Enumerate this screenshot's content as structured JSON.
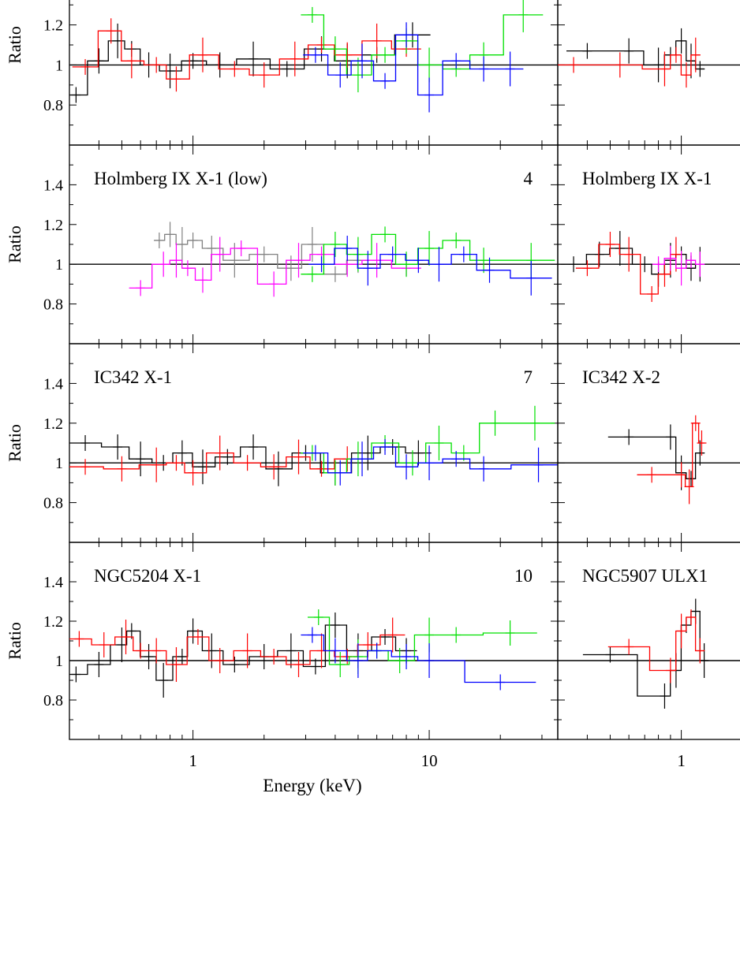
{
  "figure": {
    "ylabel": "Ratio",
    "xlabel": "Energy (keV)"
  },
  "colors": {
    "black": "#000000",
    "red": "#ff0000",
    "green": "#00e000",
    "blue": "#0000ff",
    "gray": "#808080",
    "magenta": "#ff00ff"
  },
  "chart_data": [
    {
      "type": "scatter",
      "panel_row": 1,
      "panel_col": 1,
      "title": "",
      "number": "",
      "xlabel": "",
      "ylabel": "Ratio",
      "xscale": "log",
      "xlim": [
        0.3,
        35
      ],
      "ylim": [
        0.6,
        1.6
      ],
      "yticks": [
        "0.8",
        "1",
        "1.2"
      ],
      "xticks": [],
      "reference_line": 1,
      "series": [
        {
          "color": "black",
          "x": [
            0.32,
            0.4,
            0.48,
            0.55,
            0.65,
            0.8,
            1.0,
            1.3,
            1.8,
            2.5,
            3.5,
            4.5,
            6,
            8.5
          ],
          "y": [
            0.85,
            1.02,
            1.12,
            1.08,
            1.0,
            0.97,
            1.02,
            1.0,
            1.03,
            0.98,
            1.08,
            1.02,
            1.05,
            1.15
          ]
        },
        {
          "color": "red",
          "x": [
            0.35,
            0.45,
            0.55,
            0.7,
            0.85,
            1.1,
            1.5,
            2.0,
            2.7,
            3.5,
            4.5,
            6,
            8
          ],
          "y": [
            0.99,
            1.17,
            1.02,
            1.0,
            0.93,
            1.05,
            0.98,
            0.95,
            1.03,
            1.1,
            1.05,
            1.12,
            1.08
          ]
        },
        {
          "color": "green",
          "x": [
            3.2,
            4,
            5,
            6.5,
            8,
            10,
            13,
            17,
            25
          ],
          "y": [
            1.25,
            1.08,
            0.95,
            1.05,
            1.12,
            1.0,
            0.98,
            1.05,
            1.25
          ]
        },
        {
          "color": "blue",
          "x": [
            3.3,
            4.2,
            5.2,
            6.5,
            8,
            10,
            13,
            17,
            22
          ],
          "y": [
            1.05,
            0.95,
            1.02,
            0.92,
            1.15,
            0.85,
            1.02,
            0.98,
            0.98
          ]
        }
      ]
    },
    {
      "type": "scatter",
      "panel_row": 1,
      "panel_col": 2,
      "title": "",
      "number": "",
      "xlabel": "",
      "ylabel": "",
      "xscale": "log",
      "xlim": [
        0.3,
        35
      ],
      "ylim": [
        0.6,
        1.6
      ],
      "yticks": [],
      "xticks": [],
      "reference_line": 1,
      "series": [
        {
          "color": "black",
          "x": [
            0.4,
            0.6,
            0.8,
            0.9,
            1.0,
            1.1,
            1.2
          ],
          "y": [
            1.07,
            1.07,
            1.0,
            1.05,
            1.12,
            1.02,
            0.98
          ]
        },
        {
          "color": "red",
          "x": [
            0.35,
            0.55,
            0.85,
            0.95,
            1.05,
            1.15
          ],
          "y": [
            1.0,
            1.0,
            0.98,
            1.05,
            0.95,
            1.05
          ]
        }
      ]
    },
    {
      "type": "scatter",
      "panel_row": 2,
      "panel_col": 1,
      "title": "Holmberg IX X-1 (low)",
      "number": "4",
      "xlabel": "",
      "ylabel": "Ratio",
      "xscale": "log",
      "xlim": [
        0.3,
        35
      ],
      "ylim": [
        0.6,
        1.6
      ],
      "yticks": [
        "0.8",
        "1",
        "1.2",
        "1.4"
      ],
      "xticks": [],
      "reference_line": 1,
      "series": [
        {
          "color": "gray",
          "x": [
            0.72,
            0.8,
            0.9,
            1.0,
            1.2,
            1.5,
            2,
            2.6,
            3.2,
            4,
            5
          ],
          "y": [
            1.12,
            1.15,
            1.1,
            1.12,
            1.08,
            1.02,
            1.05,
            0.98,
            1.1,
            0.95,
            1.02
          ]
        },
        {
          "color": "magenta",
          "x": [
            0.6,
            0.75,
            0.85,
            0.95,
            1.1,
            1.3,
            1.6,
            2.2,
            2.8,
            3.5,
            4.5,
            6,
            8
          ],
          "y": [
            0.88,
            1.0,
            1.02,
            0.98,
            0.92,
            1.05,
            1.08,
            0.9,
            1.02,
            1.05,
            1.0,
            1.02,
            0.98
          ]
        },
        {
          "color": "green",
          "x": [
            3.2,
            4,
            5,
            6.5,
            8,
            10,
            13,
            17,
            27
          ],
          "y": [
            0.95,
            1.1,
            1.05,
            1.15,
            1.0,
            1.08,
            1.12,
            1.02,
            1.02
          ]
        },
        {
          "color": "blue",
          "x": [
            3.5,
            4.5,
            5.5,
            7,
            9,
            11,
            14,
            18,
            27
          ],
          "y": [
            1.0,
            1.08,
            0.98,
            1.05,
            1.02,
            1.0,
            1.05,
            0.97,
            0.93
          ]
        }
      ]
    },
    {
      "type": "scatter",
      "panel_row": 2,
      "panel_col": 2,
      "title": "Holmberg IX X-1",
      "number": "",
      "xlabel": "",
      "ylabel": "",
      "xscale": "log",
      "xlim": [
        0.3,
        35
      ],
      "ylim": [
        0.6,
        1.6
      ],
      "yticks": [],
      "xticks": [],
      "reference_line": 1,
      "series": [
        {
          "color": "black",
          "x": [
            0.35,
            0.45,
            0.55,
            0.7,
            0.8,
            0.9,
            1.0,
            1.1,
            1.2
          ],
          "y": [
            1.0,
            1.05,
            1.08,
            1.0,
            0.95,
            1.02,
            1.05,
            0.98,
            1.0
          ]
        },
        {
          "color": "red",
          "x": [
            0.4,
            0.5,
            0.6,
            0.75,
            0.85,
            0.95
          ],
          "y": [
            0.98,
            1.1,
            1.05,
            0.85,
            0.95,
            1.05
          ]
        },
        {
          "color": "magenta",
          "x": [
            0.8,
            0.9,
            1.0,
            1.1,
            1.2
          ],
          "y": [
            1.0,
            1.03,
            0.98,
            1.02,
            1.0
          ]
        }
      ]
    },
    {
      "type": "scatter",
      "panel_row": 3,
      "panel_col": 1,
      "title": "IC342 X-1",
      "number": "7",
      "xlabel": "",
      "ylabel": "Ratio",
      "xscale": "log",
      "xlim": [
        0.3,
        35
      ],
      "ylim": [
        0.6,
        1.6
      ],
      "yticks": [
        "0.8",
        "1",
        "1.2",
        "1.4"
      ],
      "xticks": [],
      "reference_line": 1,
      "series": [
        {
          "color": "black",
          "x": [
            0.35,
            0.48,
            0.6,
            0.75,
            0.9,
            1.1,
            1.4,
            1.8,
            2.3,
            3,
            4,
            5.5,
            7,
            9
          ],
          "y": [
            1.1,
            1.08,
            1.02,
            1.0,
            1.05,
            0.98,
            1.03,
            1.08,
            0.97,
            1.05,
            0.95,
            1.05,
            1.08,
            1.05
          ]
        },
        {
          "color": "red",
          "x": [
            0.35,
            0.5,
            0.7,
            0.85,
            1.0,
            1.3,
            1.7,
            2.2,
            2.8,
            3.5,
            4.5
          ],
          "y": [
            0.98,
            0.97,
            0.99,
            1.0,
            0.95,
            1.05,
            1.0,
            0.98,
            1.03,
            0.97,
            1.02
          ]
        },
        {
          "color": "green",
          "x": [
            3.2,
            4,
            5,
            6.5,
            8.5,
            11,
            14,
            19,
            28
          ],
          "y": [
            1.05,
            0.95,
            1.02,
            1.1,
            1.0,
            1.1,
            1.05,
            1.2,
            1.2
          ]
        },
        {
          "color": "blue",
          "x": [
            3.3,
            4.2,
            5.2,
            6.5,
            8,
            10,
            13,
            17,
            29
          ],
          "y": [
            1.05,
            0.95,
            1.02,
            1.08,
            0.98,
            1.0,
            1.02,
            0.97,
            0.99
          ]
        }
      ]
    },
    {
      "type": "scatter",
      "panel_row": 3,
      "panel_col": 2,
      "title": "IC342 X-2",
      "number": "",
      "xlabel": "",
      "ylabel": "",
      "xscale": "log",
      "xlim": [
        0.3,
        35
      ],
      "ylim": [
        0.6,
        1.6
      ],
      "yticks": [],
      "xticks": [],
      "reference_line": 1,
      "series": [
        {
          "color": "black",
          "x": [
            0.6,
            0.9,
            1.0,
            1.1,
            1.2
          ],
          "y": [
            1.13,
            1.13,
            0.95,
            0.92,
            1.05
          ]
        },
        {
          "color": "red",
          "x": [
            0.75,
            1.0,
            1.08,
            1.15,
            1.22
          ],
          "y": [
            0.94,
            0.94,
            0.88,
            1.2,
            1.1
          ]
        }
      ]
    },
    {
      "type": "scatter",
      "panel_row": 4,
      "panel_col": 1,
      "title": "NGC5204 X-1",
      "number": "10",
      "xlabel": "Energy (keV)",
      "ylabel": "Ratio",
      "xscale": "log",
      "xlim": [
        0.3,
        35
      ],
      "ylim": [
        0.6,
        1.6
      ],
      "yticks": [
        "0.8",
        "1",
        "1.2",
        "1.4"
      ],
      "xticks": [
        "1",
        "10"
      ],
      "reference_line": 1,
      "series": [
        {
          "color": "black",
          "x": [
            0.32,
            0.4,
            0.5,
            0.55,
            0.65,
            0.75,
            0.9,
            1.0,
            1.2,
            1.5,
            2,
            2.6,
            3.3,
            4,
            5,
            6.5,
            8
          ],
          "y": [
            0.93,
            0.98,
            1.08,
            1.15,
            1.02,
            0.9,
            1.02,
            1.15,
            1.05,
            0.98,
            1.02,
            1.05,
            0.97,
            1.18,
            1.05,
            1.12,
            1.05
          ]
        },
        {
          "color": "red",
          "x": [
            0.33,
            0.42,
            0.52,
            0.6,
            0.7,
            0.85,
            1.05,
            1.3,
            1.7,
            2.2,
            2.8,
            3.5,
            4.5,
            5.5,
            7
          ],
          "y": [
            1.11,
            1.08,
            1.12,
            1.05,
            1.05,
            0.98,
            1.12,
            1.0,
            1.05,
            1.02,
            0.98,
            1.05,
            1.02,
            1.08,
            1.13
          ]
        },
        {
          "color": "green",
          "x": [
            3.4,
            4.2,
            5,
            6,
            7.5,
            10,
            13,
            22
          ],
          "y": [
            1.22,
            0.98,
            1.02,
            1.05,
            1.0,
            1.13,
            1.13,
            1.14
          ]
        },
        {
          "color": "blue",
          "x": [
            3.2,
            4,
            5,
            6,
            8,
            10,
            20
          ],
          "y": [
            1.13,
            1.05,
            1.0,
            1.05,
            1.02,
            1.0,
            0.89
          ]
        }
      ]
    },
    {
      "type": "scatter",
      "panel_row": 4,
      "panel_col": 2,
      "title": "NGC5907 ULX1",
      "number": "",
      "xlabel": "",
      "ylabel": "",
      "xscale": "log",
      "xlim": [
        0.3,
        35
      ],
      "ylim": [
        0.6,
        1.6
      ],
      "yticks": [],
      "xticks": [
        "1"
      ],
      "reference_line": 1,
      "series": [
        {
          "color": "black",
          "x": [
            0.5,
            0.85,
            0.95,
            1.05,
            1.15,
            1.25
          ],
          "y": [
            1.03,
            0.82,
            0.95,
            1.18,
            1.25,
            1.0
          ]
        },
        {
          "color": "red",
          "x": [
            0.6,
            0.9,
            1.0,
            1.1,
            1.2
          ],
          "y": [
            1.07,
            0.95,
            1.15,
            1.22,
            1.05
          ]
        }
      ]
    }
  ]
}
